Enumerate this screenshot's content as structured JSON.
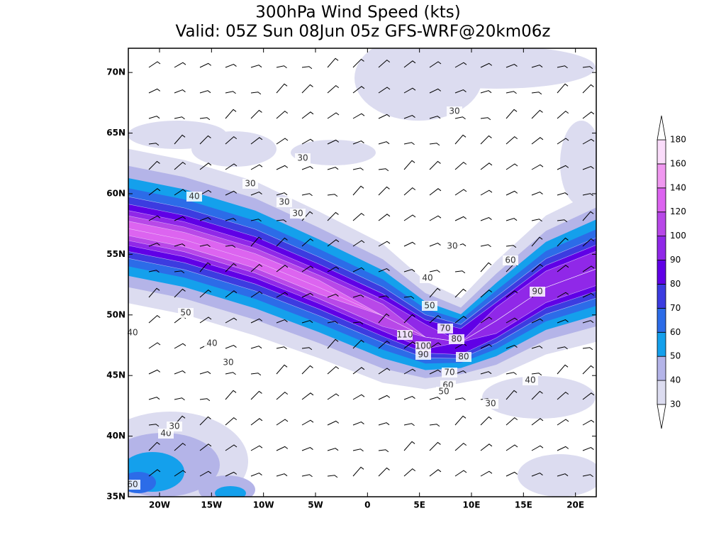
{
  "chart_data": {
    "type": "map",
    "title": "300hPa Wind Speed (kts)",
    "subtitle": "Valid: 05Z Sun 08Jun 05z GFS-WRF@20km06z",
    "xlim": [
      -23,
      22
    ],
    "ylim": [
      35,
      72
    ],
    "xticks": [
      {
        "value": -20,
        "label": "20W"
      },
      {
        "value": -15,
        "label": "15W"
      },
      {
        "value": -10,
        "label": "10W"
      },
      {
        "value": -5,
        "label": "5W"
      },
      0,
      {
        "value": 5,
        "label": "5E"
      },
      {
        "value": 10,
        "label": "10E"
      },
      {
        "value": 15,
        "label": "15E"
      },
      {
        "value": 20,
        "label": "20E"
      }
    ],
    "yticks": [
      {
        "value": 35,
        "label": "35N"
      },
      {
        "value": 40,
        "label": "40N"
      },
      {
        "value": 45,
        "label": "45N"
      },
      {
        "value": 50,
        "label": "50N"
      },
      {
        "value": 55,
        "label": "55N"
      },
      {
        "value": 60,
        "label": "60N"
      },
      {
        "value": 65,
        "label": "65N"
      },
      {
        "value": 70,
        "label": "70N"
      }
    ],
    "colorbar": {
      "levels": [
        30,
        40,
        50,
        60,
        70,
        80,
        90,
        100,
        120,
        140,
        160,
        180
      ],
      "colors": [
        "#dcdcf0",
        "#b4b4e8",
        "#14a0ec",
        "#2c6ce8",
        "#3c3ce0",
        "#6000e6",
        "#9028e8",
        "#b848e8",
        "#dc64f0",
        "#f098f0",
        "#fadcfa"
      ]
    },
    "contour_labels": [
      30,
      30,
      30,
      30,
      30,
      40,
      30,
      40,
      60,
      90,
      50,
      70,
      110,
      80,
      100,
      90,
      80,
      50,
      40,
      30,
      70,
      60,
      50,
      40,
      30,
      40,
      30,
      60,
      40
    ]
  }
}
